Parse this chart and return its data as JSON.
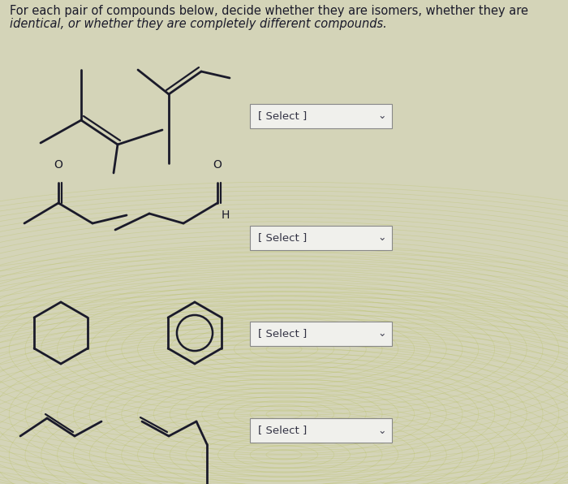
{
  "title_line1": "For each pair of compounds below, decide whether they are isomers, whether they are",
  "title_line2": "identical, or whether they are completely different compounds.",
  "bg_color": "#d8d8c8",
  "bg_texture_color1": "#c8cc90",
  "bg_texture_color2": "#b8c878",
  "select_box_color": "#f0f0ec",
  "select_text": "[ Select ]",
  "line_color": "#1a1a2a",
  "text_color": "#1a1a2a",
  "title_fontsize": 10.5,
  "select_fontsize": 9.5,
  "arrow_char": "⌄"
}
